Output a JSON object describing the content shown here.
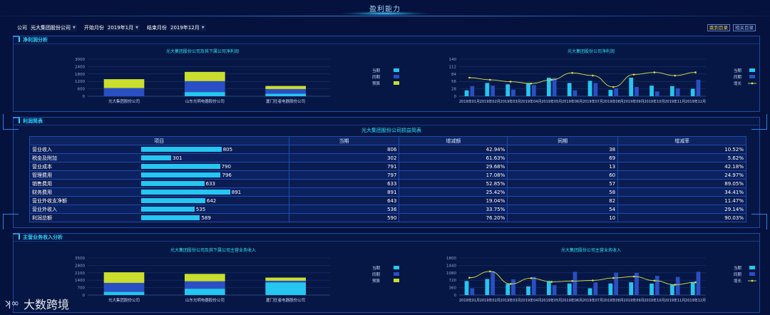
{
  "header": {
    "title": "盈利能力"
  },
  "filters": {
    "company_label": "公司",
    "company_value": "光大集团股份公司",
    "start_label": "开始月份",
    "start_value": "2019年1月",
    "end_label": "结束月份",
    "end_value": "2019年12月"
  },
  "buttons": {
    "monthly": "跳到目录",
    "related": "相关目录"
  },
  "sections": {
    "net_profit": "净利润分析",
    "income_statement": "利润简表",
    "main_income": "主营业务收入分析"
  },
  "colors": {
    "current": "#25c6f0",
    "prev": "#2a4fc4",
    "budget": "#c9de2d",
    "growth_line": "#d6e04a"
  },
  "legend": {
    "current": "当期",
    "prev": "同期",
    "budget": "预算",
    "growth": "增长"
  },
  "charts": {
    "net_sub": {
      "title": "光大集团股份公司及其下属公司净利润",
      "type": "bar",
      "categories": [
        "光大集团股份公司",
        "山东光明电器股份公司",
        "厦门狂者电器股份公司"
      ],
      "series": [
        {
          "name": "当期",
          "values": [
            0,
            340,
            200
          ]
        },
        {
          "name": "同期",
          "values": [
            660,
            880,
            380
          ]
        },
        {
          "name": "预算",
          "values": [
            720,
            750,
            250
          ]
        }
      ],
      "y_ticks": [
        "0",
        "600",
        "1200",
        "1800",
        "2400",
        "3000"
      ],
      "ylim": [
        0,
        3000
      ]
    },
    "net_month": {
      "title": "光大集团股份公司净利润",
      "type": "bar+line",
      "categories": [
        "2019年01月",
        "2019年02月",
        "2019年03月",
        "2019年04月",
        "2019年05月",
        "2019年06月",
        "2019年07月",
        "2019年08月",
        "2019年09月",
        "2019年10月",
        "2019年11月",
        "2019年12月"
      ],
      "series": [
        {
          "name": "当期",
          "values": [
            22,
            50,
            45,
            50,
            70,
            50,
            58,
            24,
            70,
            40,
            38,
            28
          ]
        },
        {
          "name": "同期",
          "values": [
            38,
            40,
            25,
            42,
            70,
            22,
            50,
            30,
            35,
            18,
            30,
            62
          ]
        },
        {
          "name": "增长",
          "values": [
            70,
            62,
            55,
            48,
            62,
            88,
            78,
            35,
            82,
            90,
            78,
            90
          ]
        }
      ],
      "y_ticks": [
        "0",
        "28",
        "56",
        "84",
        "112",
        "140"
      ],
      "ylim": [
        0,
        140
      ]
    },
    "income_sub": {
      "title": "光大集团股份公司及其下属公司主营业务收入",
      "type": "bar",
      "categories": [
        "光大集团股份公司",
        "山东光明电器股份公司",
        "厦门狂者电器股份公司"
      ],
      "series": [
        {
          "name": "当期",
          "values": [
            300,
            600,
            1200
          ]
        },
        {
          "name": "同期",
          "values": [
            850,
            700,
            150
          ]
        },
        {
          "name": "预算",
          "values": [
            1000,
            700,
            300
          ]
        }
      ],
      "y_ticks": [
        "0",
        "700",
        "1400",
        "2100",
        "2800",
        "3500"
      ],
      "ylim": [
        0,
        3500
      ]
    },
    "income_month": {
      "title": "光大集团股份公司主营业务收入",
      "type": "bar+line",
      "categories": [
        "2019年01月",
        "2019年02月",
        "2019年03月",
        "2019年04月",
        "2019年05月",
        "2019年06月",
        "2019年07月",
        "2019年08月",
        "2019年09月",
        "2019年10月",
        "2019年11月",
        "2019年12月"
      ],
      "series": [
        {
          "name": "当期",
          "values": [
            680,
            780,
            540,
            420,
            680,
            560,
            330,
            560,
            620,
            560,
            520,
            630
          ]
        },
        {
          "name": "同期",
          "values": [
            330,
            1160,
            760,
            880,
            480,
            1130,
            610,
            1090,
            1080,
            930,
            880,
            1130
          ]
        },
        {
          "name": "增长",
          "values": [
            840,
            1150,
            540,
            820,
            640,
            680,
            710,
            830,
            900,
            700,
            500,
            620
          ]
        }
      ],
      "y_ticks": [
        "0",
        "360",
        "720",
        "1080",
        "1440",
        "1800"
      ],
      "ylim": [
        0,
        1800
      ]
    }
  },
  "income_table": {
    "caption": "光大集团股份公司损益简表",
    "columns": [
      "项目",
      "当期",
      "增减额",
      "同期",
      "增减率"
    ],
    "rows": [
      {
        "item": "营业收入",
        "bar": 805,
        "current": "806",
        "change": "42.94%",
        "prev": "38",
        "rate": "10.52%"
      },
      {
        "item": "税金及附加",
        "bar": 301,
        "current": "302",
        "change": "61.63%",
        "prev": "69",
        "rate": "5.62%"
      },
      {
        "item": "营业成本",
        "bar": 790,
        "current": "791",
        "change": "29.68%",
        "prev": "13",
        "rate": "42.18%"
      },
      {
        "item": "管理费用",
        "bar": 796,
        "current": "797",
        "change": "17.08%",
        "prev": "60",
        "rate": "24.97%"
      },
      {
        "item": "销售费用",
        "bar": 633,
        "current": "633",
        "change": "52.85%",
        "prev": "57",
        "rate": "89.05%"
      },
      {
        "item": "财务费用",
        "bar": 891,
        "current": "891",
        "change": "25.42%",
        "prev": "58",
        "rate": "34.41%"
      },
      {
        "item": "营业外收支净额",
        "bar": 642,
        "current": "643",
        "change": "19.04%",
        "prev": "82",
        "rate": "11.47%"
      },
      {
        "item": "营业外收入",
        "bar": 535,
        "current": "536",
        "change": "33.75%",
        "prev": "54",
        "rate": "29.14%"
      },
      {
        "item": "利润总额",
        "bar": 589,
        "current": "590",
        "change": "76.20%",
        "prev": "10",
        "rate": "90.03%"
      }
    ]
  },
  "watermark": {
    "text": "大数跨境"
  }
}
